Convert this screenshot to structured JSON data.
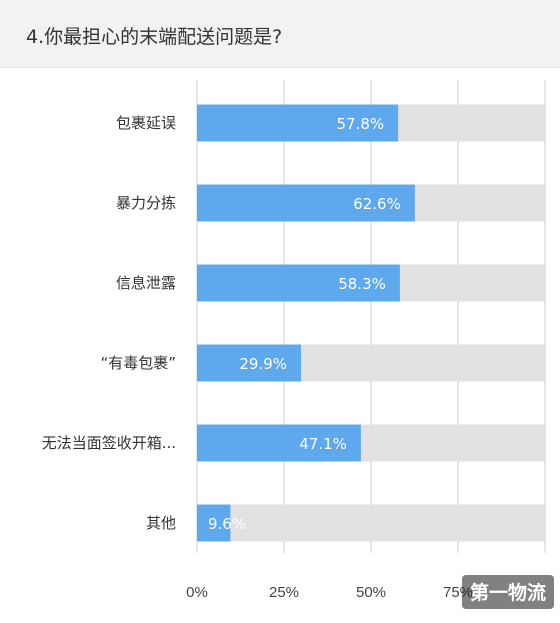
{
  "question": {
    "title": "4.你最担心的末端配送问题是?"
  },
  "watermark": {
    "text": "第一物流"
  },
  "colors": {
    "bar": "#5ea8ee",
    "track": "#e1e1e1",
    "grid": "#d4d4d4",
    "header_bg": "#f2f2f2"
  },
  "chart_data": {
    "type": "bar",
    "orientation": "horizontal",
    "categories": [
      "包裹延误",
      "暴力分拣",
      "信息泄露",
      "“有毒包裹”",
      "无法当面签收开箱...",
      "其他"
    ],
    "values": [
      57.8,
      62.6,
      58.3,
      29.9,
      47.1,
      9.6
    ],
    "value_labels": [
      "57.8%",
      "62.6%",
      "58.3%",
      "29.9%",
      "47.1%",
      "9.6%"
    ],
    "xlim": [
      0,
      100
    ],
    "x_ticks": [
      0,
      25,
      50,
      75,
      100
    ],
    "x_tick_labels": [
      "0%",
      "25%",
      "50%",
      "75%",
      ""
    ],
    "grid": true,
    "title": "",
    "xlabel": "",
    "ylabel": ""
  }
}
